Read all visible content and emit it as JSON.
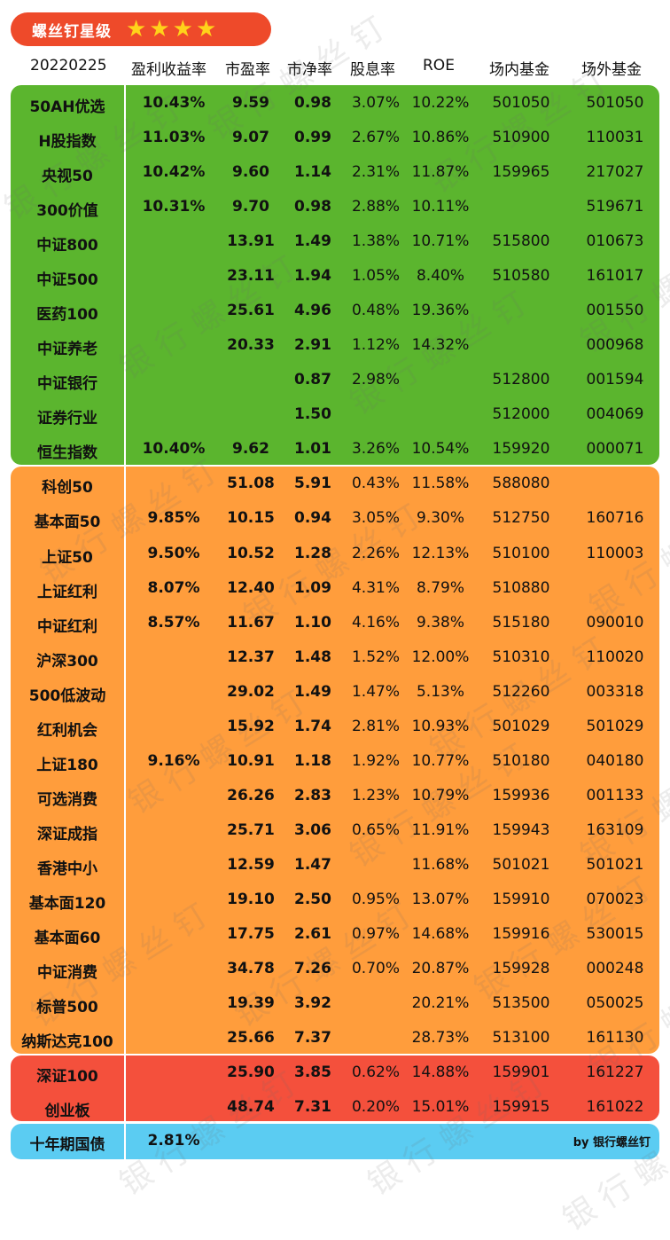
{
  "badge": {
    "title": "螺丝钉星级",
    "stars": 4,
    "star_glyph": "★",
    "color": "#ee4a2a",
    "star_color": "#ffd21a"
  },
  "header": {
    "date": "20220225",
    "earnings_yield": "盈利收益率",
    "pe": "市盈率",
    "pb": "市净率",
    "dividend": "股息率",
    "roe": "ROE",
    "onexchange": "场内基金",
    "offexchange": "场外基金"
  },
  "colors": {
    "green": "#5bb52e",
    "orange": "#ff9d3c",
    "red": "#f4503c",
    "blue": "#5bccf2"
  },
  "rows": [
    {
      "name": "50AH优选",
      "ey": "10.43%",
      "pe": "9.59",
      "pb": "0.98",
      "dy": "3.07%",
      "roe": "10.22%",
      "in": "501050",
      "out": "501050"
    },
    {
      "name": "H股指数",
      "ey": "11.03%",
      "pe": "9.07",
      "pb": "0.99",
      "dy": "2.67%",
      "roe": "10.86%",
      "in": "510900",
      "out": "110031"
    },
    {
      "name": "央视50",
      "ey": "10.42%",
      "pe": "9.60",
      "pb": "1.14",
      "dy": "2.31%",
      "roe": "11.87%",
      "in": "159965",
      "out": "217027"
    },
    {
      "name": "300价值",
      "ey": "10.31%",
      "pe": "9.70",
      "pb": "0.98",
      "dy": "2.88%",
      "roe": "10.11%",
      "in": "",
      "out": "519671"
    },
    {
      "name": "中证800",
      "ey": "",
      "pe": "13.91",
      "pb": "1.49",
      "dy": "1.38%",
      "roe": "10.71%",
      "in": "515800",
      "out": "010673"
    },
    {
      "name": "中证500",
      "ey": "",
      "pe": "23.11",
      "pb": "1.94",
      "dy": "1.05%",
      "roe": "8.40%",
      "in": "510580",
      "out": "161017"
    },
    {
      "name": "医药100",
      "ey": "",
      "pe": "25.61",
      "pb": "4.96",
      "dy": "0.48%",
      "roe": "19.36%",
      "in": "",
      "out": "001550"
    },
    {
      "name": "中证养老",
      "ey": "",
      "pe": "20.33",
      "pb": "2.91",
      "dy": "1.12%",
      "roe": "14.32%",
      "in": "",
      "out": "000968"
    },
    {
      "name": "中证银行",
      "ey": "",
      "pe": "",
      "pb": "0.87",
      "dy": "2.98%",
      "roe": "",
      "in": "512800",
      "out": "001594"
    },
    {
      "name": "证券行业",
      "ey": "",
      "pe": "",
      "pb": "1.50",
      "dy": "",
      "roe": "",
      "in": "512000",
      "out": "004069"
    },
    {
      "name": "恒生指数",
      "ey": "10.40%",
      "pe": "9.62",
      "pb": "1.01",
      "dy": "3.26%",
      "roe": "10.54%",
      "in": "159920",
      "out": "000071"
    },
    {
      "name": "科创50",
      "ey": "",
      "pe": "51.08",
      "pb": "5.91",
      "dy": "0.43%",
      "roe": "11.58%",
      "in": "588080",
      "out": ""
    },
    {
      "name": "基本面50",
      "ey": "9.85%",
      "pe": "10.15",
      "pb": "0.94",
      "dy": "3.05%",
      "roe": "9.30%",
      "in": "512750",
      "out": "160716"
    },
    {
      "name": "上证50",
      "ey": "9.50%",
      "pe": "10.52",
      "pb": "1.28",
      "dy": "2.26%",
      "roe": "12.13%",
      "in": "510100",
      "out": "110003"
    },
    {
      "name": "上证红利",
      "ey": "8.07%",
      "pe": "12.40",
      "pb": "1.09",
      "dy": "4.31%",
      "roe": "8.79%",
      "in": "510880",
      "out": ""
    },
    {
      "name": "中证红利",
      "ey": "8.57%",
      "pe": "11.67",
      "pb": "1.10",
      "dy": "4.16%",
      "roe": "9.38%",
      "in": "515180",
      "out": "090010"
    },
    {
      "name": "沪深300",
      "ey": "",
      "pe": "12.37",
      "pb": "1.48",
      "dy": "1.52%",
      "roe": "12.00%",
      "in": "510310",
      "out": "110020"
    },
    {
      "name": "500低波动",
      "ey": "",
      "pe": "29.02",
      "pb": "1.49",
      "dy": "1.47%",
      "roe": "5.13%",
      "in": "512260",
      "out": "003318"
    },
    {
      "name": "红利机会",
      "ey": "",
      "pe": "15.92",
      "pb": "1.74",
      "dy": "2.81%",
      "roe": "10.93%",
      "in": "501029",
      "out": "501029"
    },
    {
      "name": "上证180",
      "ey": "9.16%",
      "pe": "10.91",
      "pb": "1.18",
      "dy": "1.92%",
      "roe": "10.77%",
      "in": "510180",
      "out": "040180"
    },
    {
      "name": "可选消费",
      "ey": "",
      "pe": "26.26",
      "pb": "2.83",
      "dy": "1.23%",
      "roe": "10.79%",
      "in": "159936",
      "out": "001133"
    },
    {
      "name": "深证成指",
      "ey": "",
      "pe": "25.71",
      "pb": "3.06",
      "dy": "0.65%",
      "roe": "11.91%",
      "in": "159943",
      "out": "163109"
    },
    {
      "name": "香港中小",
      "ey": "",
      "pe": "12.59",
      "pb": "1.47",
      "dy": "",
      "roe": "11.68%",
      "in": "501021",
      "out": "501021"
    },
    {
      "name": "基本面120",
      "ey": "",
      "pe": "19.10",
      "pb": "2.50",
      "dy": "0.95%",
      "roe": "13.07%",
      "in": "159910",
      "out": "070023"
    },
    {
      "name": "基本面60",
      "ey": "",
      "pe": "17.75",
      "pb": "2.61",
      "dy": "0.97%",
      "roe": "14.68%",
      "in": "159916",
      "out": "530015"
    },
    {
      "name": "中证消费",
      "ey": "",
      "pe": "34.78",
      "pb": "7.26",
      "dy": "0.70%",
      "roe": "20.87%",
      "in": "159928",
      "out": "000248"
    },
    {
      "name": "标普500",
      "ey": "",
      "pe": "19.39",
      "pb": "3.92",
      "dy": "",
      "roe": "20.21%",
      "in": "513500",
      "out": "050025"
    },
    {
      "name": "纳斯达克100",
      "ey": "",
      "pe": "25.66",
      "pb": "7.37",
      "dy": "",
      "roe": "28.73%",
      "in": "513100",
      "out": "161130"
    },
    {
      "name": "深证100",
      "ey": "",
      "pe": "25.90",
      "pb": "3.85",
      "dy": "0.62%",
      "roe": "14.88%",
      "in": "159901",
      "out": "161227"
    },
    {
      "name": "创业板",
      "ey": "",
      "pe": "48.74",
      "pb": "7.31",
      "dy": "0.20%",
      "roe": "15.01%",
      "in": "159915",
      "out": "161022"
    }
  ],
  "footer": {
    "name": "十年期国债",
    "ey": "2.81%",
    "credit": "by 银行螺丝钉"
  },
  "watermark": "银 行 螺 丝 钉"
}
